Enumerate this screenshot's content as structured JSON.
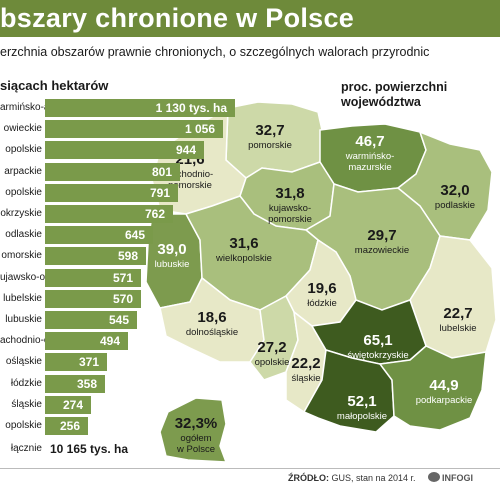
{
  "title": "bszary chronione w Polsce",
  "subtitle": "erzchnia obszarów prawnie chronionych, o szczególnych walorach przyrodnic",
  "unit_label": "siącach hektarów",
  "proc_label": "proc. powierzchni\nwojewództwa",
  "bars": [
    {
      "label": "armińsko-azurskie",
      "value": 1130,
      "display": "1 130 tys. ha"
    },
    {
      "label": "owieckie",
      "value": 1056,
      "display": "1 056"
    },
    {
      "label": "opolskie",
      "value": 944,
      "display": "944"
    },
    {
      "label": "arpackie",
      "value": 801,
      "display": "801"
    },
    {
      "label": "opolskie",
      "value": 791,
      "display": "791"
    },
    {
      "label": "okrzyskie",
      "value": 762,
      "display": "762"
    },
    {
      "label": "odlaskie",
      "value": 645,
      "display": "645"
    },
    {
      "label": "omorskie",
      "value": 598,
      "display": "598"
    },
    {
      "label": "ujawsko-omorskie",
      "value": 571,
      "display": "571"
    },
    {
      "label": "lubelskie",
      "value": 570,
      "display": "570"
    },
    {
      "label": "lubuskie",
      "value": 545,
      "display": "545"
    },
    {
      "label": "achodnio-omorskie",
      "value": 494,
      "display": "494"
    },
    {
      "label": "ośląskie",
      "value": 371,
      "display": "371"
    },
    {
      "label": "łódzkie",
      "value": 358,
      "display": "358"
    },
    {
      "label": "śląskie",
      "value": 274,
      "display": "274"
    },
    {
      "label": "opolskie",
      "value": 256,
      "display": "256"
    }
  ],
  "total": {
    "label": "łącznie",
    "display": "10 165 tys. ha"
  },
  "regions": [
    {
      "id": "pomorskie",
      "pct": "32,7",
      "name": "pomorskie",
      "color": "#cdd9a8"
    },
    {
      "id": "warminsko",
      "pct": "46,7",
      "name": "warmińsko-\nmazurskie",
      "color": "#6f9144"
    },
    {
      "id": "podlaskie",
      "pct": "32,0",
      "name": "podlaskie",
      "color": "#a9bf7d"
    },
    {
      "id": "zachodnio",
      "pct": "21,6",
      "name": "zachodnio-\npomorskie",
      "color": "#e7e8c7"
    },
    {
      "id": "kujawsko",
      "pct": "31,8",
      "name": "kujawsko-\npomorskie",
      "color": "#a9bf7d"
    },
    {
      "id": "mazowieckie",
      "pct": "29,7",
      "name": "mazowieckie",
      "color": "#a9bf7d"
    },
    {
      "id": "lubuskie",
      "pct": "39,0",
      "name": "lubuskie",
      "color": "#7d9b4e"
    },
    {
      "id": "wielkopolskie",
      "pct": "31,6",
      "name": "wielkopolskie",
      "color": "#a9bf7d"
    },
    {
      "id": "lodzkie",
      "pct": "19,6",
      "name": "łódzkie",
      "color": "#e7e8c7"
    },
    {
      "id": "lubelskie",
      "pct": "22,7",
      "name": "lubelskie",
      "color": "#e7e8c7"
    },
    {
      "id": "dolnoslaskie",
      "pct": "18,6",
      "name": "dolnośląskie",
      "color": "#e7e8c7"
    },
    {
      "id": "opolskie",
      "pct": "27,2",
      "name": "opolskie",
      "color": "#cdd9a8"
    },
    {
      "id": "slaskie",
      "pct": "22,2",
      "name": "śląskie",
      "color": "#e7e8c7"
    },
    {
      "id": "swietokrzyskie",
      "pct": "65,1",
      "name": "świętokrzyskie",
      "color": "#3e5b1f"
    },
    {
      "id": "malopolskie",
      "pct": "52,1",
      "name": "małopolskie",
      "color": "#3e5b1f"
    },
    {
      "id": "podkarpackie",
      "pct": "44,9",
      "name": "podkarpackie",
      "color": "#6f9144"
    }
  ],
  "total_pct": {
    "pct": "32,3%",
    "name": "ogółem\nw Polsce",
    "color": "#7d9b4e"
  },
  "source": {
    "label": "ŹRÓDŁO:",
    "text": " GUS, stan na 2014 r."
  },
  "credit": "INFOGI"
}
